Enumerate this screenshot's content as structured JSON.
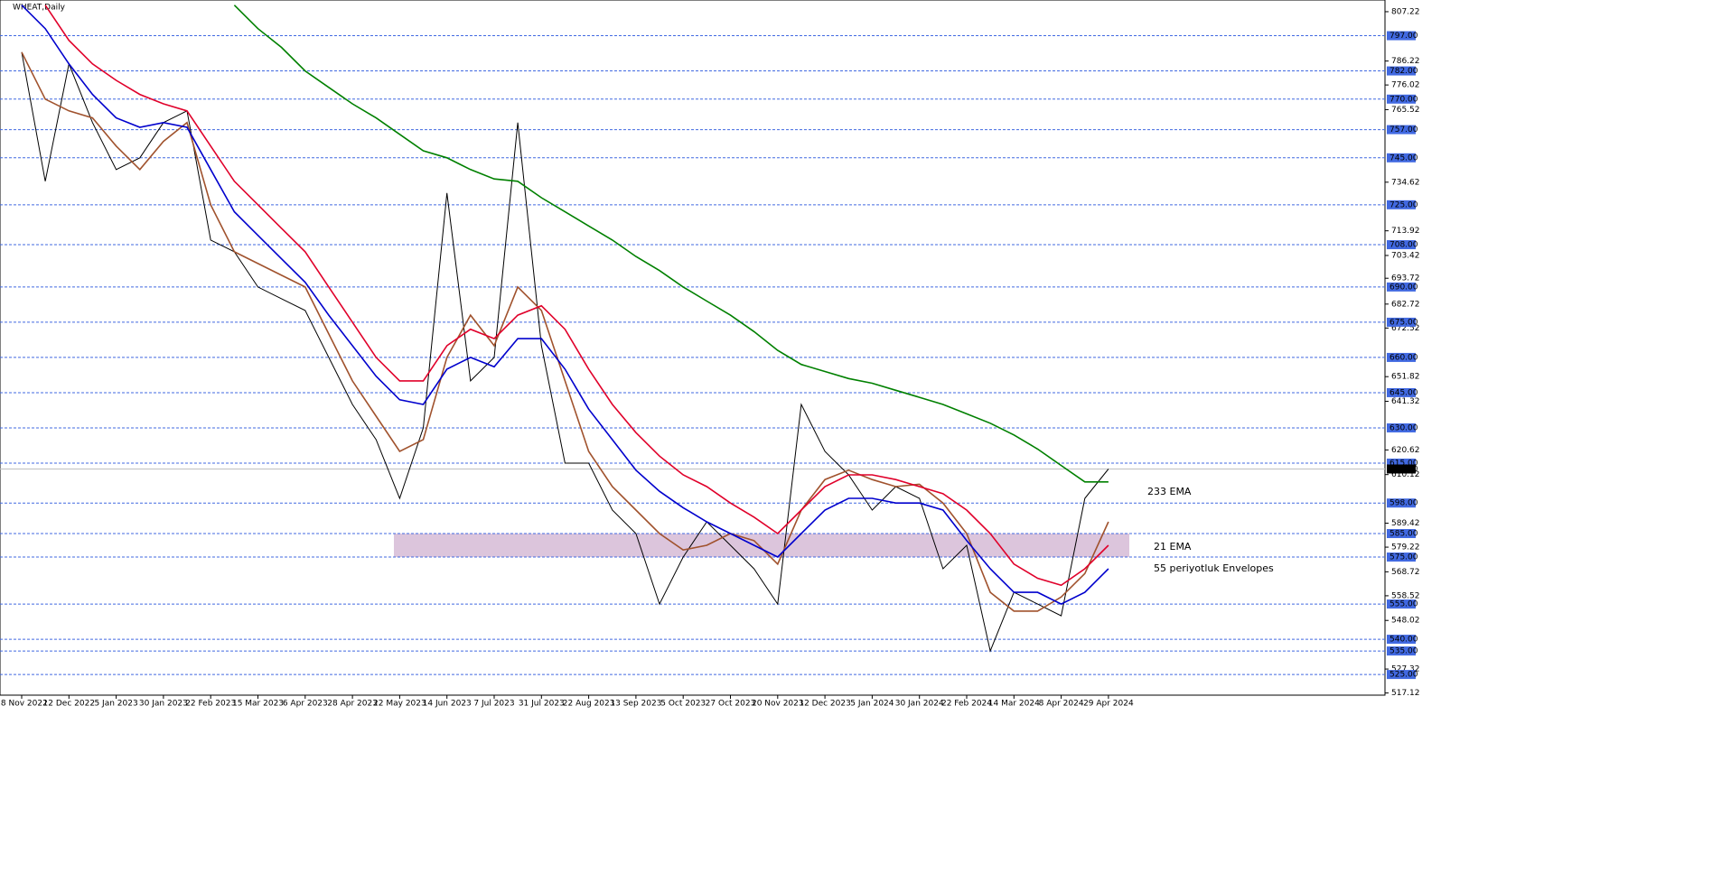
{
  "chart_data": {
    "type": "line",
    "title": "WHEAT,Daily",
    "categories": [
      "18 Nov 2022",
      null,
      "12 Dec 2022",
      null,
      "5 Jan 2023",
      null,
      "30 Jan 2023",
      null,
      "22 Feb 2023",
      null,
      "15 Mar 2023",
      null,
      "6 Apr 2023",
      null,
      "28 Apr 2023",
      null,
      "22 May 2023",
      null,
      "14 Jun 2023",
      null,
      "7 Jul 2023",
      null,
      "31 Jul 2023",
      null,
      "22 Aug 2023",
      null,
      "13 Sep 2023",
      null,
      "5 Oct 2023",
      null,
      "27 Oct 2023",
      null,
      "20 Nov 2023",
      null,
      "12 Dec 2023",
      null,
      "5 Jan 2024",
      null,
      "30 Jan 2024",
      null,
      "22 Feb 2024",
      null,
      "14 Mar 2024",
      null,
      "8 Apr 2024",
      null,
      "29 Apr 2024"
    ],
    "series": [
      {
        "color": "#000000",
        "values": [
          790,
          735,
          785,
          760,
          740,
          745,
          760,
          765,
          710,
          705,
          690,
          685,
          680,
          660,
          640,
          625,
          600,
          630,
          730,
          650,
          660,
          760,
          665,
          615,
          615,
          595,
          585,
          555,
          575,
          590,
          580,
          570,
          555,
          640,
          620,
          610,
          595,
          605,
          600,
          570,
          580,
          535,
          560,
          555,
          550,
          600,
          612.5
        ]
      },
      {
        "name": "233 EMA",
        "color": "#008000",
        "values": [
          null,
          null,
          null,
          null,
          null,
          null,
          null,
          null,
          null,
          810,
          800,
          792,
          782,
          775,
          768,
          762,
          755,
          748,
          745,
          740,
          736,
          735,
          728,
          722,
          716,
          710,
          703,
          697,
          690,
          684,
          678,
          671,
          663,
          657,
          654,
          651,
          649,
          646,
          643,
          640,
          636,
          632,
          627,
          621,
          614,
          607,
          607
        ]
      },
      {
        "name": "21 EMA",
        "color": "#a0522d",
        "values": [
          790,
          770,
          765,
          762,
          750,
          740,
          752,
          760,
          725,
          705,
          700,
          695,
          690,
          670,
          650,
          635,
          620,
          625,
          660,
          678,
          665,
          690,
          680,
          650,
          620,
          605,
          595,
          585,
          578,
          580,
          585,
          582,
          572,
          595,
          608,
          612,
          608,
          605,
          606,
          598,
          585,
          560,
          552,
          552,
          558,
          568,
          590
        ]
      },
      {
        "name": "55 periyotluk Envelopes",
        "color": "#e0002a",
        "values": [
          null,
          810,
          795,
          785,
          778,
          772,
          768,
          765,
          750,
          735,
          725,
          715,
          705,
          690,
          675,
          660,
          650,
          650,
          665,
          672,
          668,
          678,
          682,
          672,
          655,
          640,
          628,
          618,
          610,
          605,
          598,
          592,
          585,
          595,
          605,
          610,
          610,
          608,
          605,
          602,
          595,
          585,
          572,
          566,
          563,
          570,
          580
        ]
      },
      {
        "color": "#0000cd",
        "values": [
          810,
          800,
          785,
          772,
          762,
          758,
          760,
          758,
          740,
          722,
          712,
          702,
          692,
          678,
          665,
          652,
          642,
          640,
          655,
          660,
          656,
          668,
          668,
          655,
          638,
          625,
          612,
          603,
          596,
          590,
          585,
          580,
          575,
          585,
          595,
          600,
          600,
          598,
          598,
          595,
          582,
          570,
          560,
          560,
          555,
          560,
          570
        ]
      }
    ],
    "ylim": [
      516.2,
      812.2
    ],
    "yticks": [
      807.22,
      786.22,
      776.02,
      765.52,
      734.62,
      713.92,
      703.42,
      693.72,
      682.72,
      672.52,
      651.82,
      641.32,
      620.62,
      610.12,
      589.42,
      579.22,
      568.72,
      558.52,
      548.02,
      527.32,
      517.12
    ],
    "levels": [
      {
        "value": 797,
        "label": "797.00"
      },
      {
        "value": 782,
        "label": "782.00"
      },
      {
        "value": 770,
        "label": "770.00"
      },
      {
        "value": 757,
        "label": "757.00"
      },
      {
        "value": 745,
        "label": "745.00"
      },
      {
        "value": 725,
        "label": "725.00"
      },
      {
        "value": 708,
        "label": "708.00"
      },
      {
        "value": 690,
        "label": "690.00"
      },
      {
        "value": 675,
        "label": "675.00"
      },
      {
        "value": 660,
        "label": "660.00"
      },
      {
        "value": 645,
        "label": "645.00"
      },
      {
        "value": 630,
        "label": "630.00"
      },
      {
        "value": 615,
        "label": "615.00"
      },
      {
        "value": 598,
        "label": "598.00"
      },
      {
        "value": 585,
        "label": "585.00"
      },
      {
        "value": 575,
        "label": "575.00"
      },
      {
        "value": 555,
        "label": "555.00"
      },
      {
        "value": 540,
        "label": "540.00"
      },
      {
        "value": 535,
        "label": "535.00"
      },
      {
        "value": 525,
        "label": "525.00"
      }
    ],
    "last_price": {
      "value": 612.5,
      "label": "612.50"
    },
    "zone": [
      575,
      585
    ]
  }
}
